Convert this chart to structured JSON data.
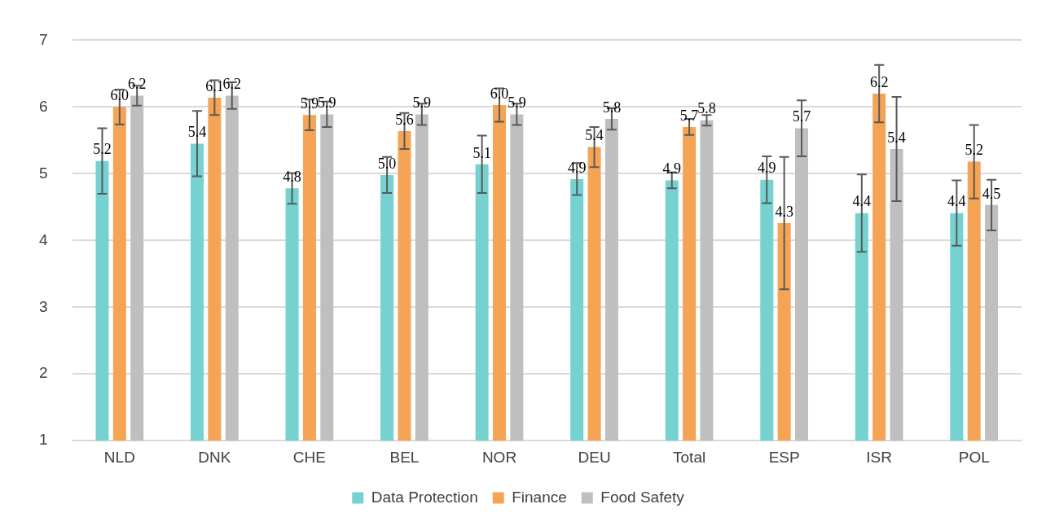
{
  "chart_data": {
    "type": "bar",
    "categories": [
      "NLD",
      "DNK",
      "CHE",
      "BEL",
      "NOR",
      "DEU",
      "Total",
      "ESP",
      "ISR",
      "POL"
    ],
    "series": [
      {
        "name": "Data Protection",
        "color": "#75d2d1",
        "values": [
          5.19,
          5.45,
          4.78,
          4.98,
          5.14,
          4.92,
          4.9,
          4.91,
          4.41,
          4.41
        ],
        "errors": [
          0.49,
          0.49,
          0.23,
          0.27,
          0.43,
          0.24,
          0.12,
          0.35,
          0.58,
          0.49
        ],
        "value_labels": [
          "5.2",
          "5.4",
          "4.8",
          "5.0",
          "5.1",
          "4.9",
          "4.9",
          "4.9",
          "4.4",
          "4.4"
        ]
      },
      {
        "name": "Finance",
        "color": "#f5a455",
        "values": [
          6.0,
          6.14,
          5.88,
          5.64,
          6.03,
          5.4,
          5.7,
          4.26,
          6.2,
          5.18
        ],
        "errors": [
          0.26,
          0.26,
          0.23,
          0.27,
          0.25,
          0.3,
          0.12,
          0.99,
          0.43,
          0.55
        ],
        "value_labels": [
          "6.0",
          "6.1",
          "5.9",
          "5.6",
          "6.0",
          "5.4",
          "5.7",
          "4.3",
          "6.2",
          "5.2"
        ]
      },
      {
        "name": "Food Safety",
        "color": "#bfbfbf",
        "values": [
          6.17,
          6.17,
          5.89,
          5.89,
          5.89,
          5.82,
          5.8,
          5.68,
          5.37,
          4.53
        ],
        "errors": [
          0.15,
          0.2,
          0.19,
          0.16,
          0.16,
          0.16,
          0.08,
          0.42,
          0.78,
          0.38
        ],
        "value_labels": [
          "6.2",
          "6.2",
          "5.9",
          "5.9",
          "5.9",
          "5.8",
          "5.8",
          "5.7",
          "5.4",
          "4.5"
        ]
      }
    ],
    "ylim": [
      1,
      7
    ],
    "yticks": [
      1,
      2,
      3,
      4,
      5,
      6,
      7
    ],
    "grid": "y",
    "legend": "bottom"
  }
}
